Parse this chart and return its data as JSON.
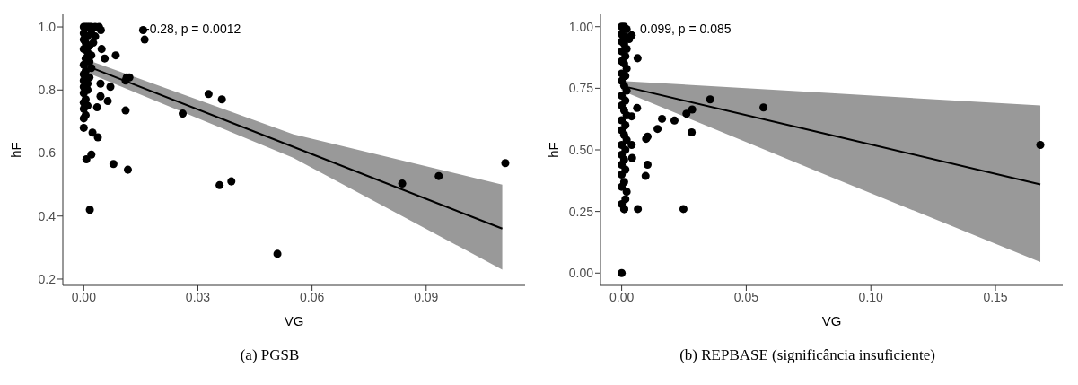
{
  "chart_data": [
    {
      "type": "scatter",
      "title": "(a) PGSB",
      "xlabel": "VG",
      "ylabel": "hF",
      "annotations": [
        "-0.28, p = 0.0012"
      ],
      "xlim": [
        -0.0055,
        0.116
      ],
      "ylim": [
        0.18,
        1.04
      ],
      "xticks": [
        {
          "value": 0,
          "label": "0.00"
        },
        {
          "value": 0.03,
          "label": "0.03"
        },
        {
          "value": 0.06,
          "label": "0.06"
        },
        {
          "value": 0.09,
          "label": "0.09"
        }
      ],
      "yticks": [
        0.2,
        0.4,
        0.6,
        0.8,
        {
          "value": 1,
          "label": "1.0"
        }
      ],
      "series": [
        {
          "marker": "circle",
          "color": "#000000",
          "x": [
            0,
            0.0005,
            0.001,
            0.0015,
            0.002,
            0.003,
            0.004,
            0.0045,
            0,
            0.001,
            0.002,
            0.003,
            0,
            0.0005,
            0.0015,
            0.0025,
            0,
            0.001,
            0.002,
            0.0005,
            0.0015,
            0,
            0.002,
            0.0005,
            0,
            0.0015,
            0,
            0.001,
            0,
            0.001,
            0,
            0.0005,
            0,
            0.001,
            0,
            0.0005,
            0,
            0.0156,
            0.016,
            0.0047,
            0.0055,
            0.0084,
            0.0113,
            0.011,
            0.012,
            0.0044,
            0.007,
            0.0044,
            0.0063,
            0.0035,
            0.011,
            0.026,
            0.0328,
            0.0363,
            0,
            0.0023,
            0.0037,
            0.0007,
            0.002,
            0.0078,
            0.0116,
            0.0016,
            0.0357,
            0.0388,
            0.0509,
            0.0837,
            0.0933,
            0.1108
          ],
          "values": [
            1.0,
            1.0,
            1.0,
            1.0,
            1.0,
            1.0,
            1.0,
            0.99,
            0.98,
            0.97,
            0.98,
            0.97,
            0.96,
            0.95,
            0.94,
            0.95,
            0.93,
            0.92,
            0.91,
            0.9,
            0.89,
            0.88,
            0.87,
            0.86,
            0.85,
            0.84,
            0.83,
            0.82,
            0.81,
            0.8,
            0.79,
            0.77,
            0.76,
            0.75,
            0.74,
            0.72,
            0.71,
            0.99,
            0.96,
            0.93,
            0.9,
            0.91,
            0.84,
            0.83,
            0.84,
            0.82,
            0.81,
            0.78,
            0.765,
            0.745,
            0.735,
            0.725,
            0.787,
            0.77,
            0.68,
            0.665,
            0.65,
            0.58,
            0.595,
            0.565,
            0.547,
            0.42,
            0.498,
            0.51,
            0.28,
            0.503,
            0.527,
            0.568
          ]
        },
        {
          "type": "line",
          "color": "#000000",
          "x": [
            0,
            0.055,
            0.11
          ],
          "values": [
            0.88,
            0.62,
            0.36
          ],
          "lower": [
            0.86,
            0.585,
            0.23
          ],
          "upper": [
            0.9,
            0.66,
            0.5
          ]
        }
      ]
    },
    {
      "type": "scatter",
      "title": "(b) REPBASE (significância insuficiente)",
      "xlabel": "VG",
      "ylabel": "hF",
      "annotations": [
        "0.099, p = 0.085"
      ],
      "xlim": [
        -0.0085,
        0.177
      ],
      "ylim": [
        -0.05,
        1.05
      ],
      "xticks": [
        {
          "value": 0,
          "label": "0.00"
        },
        {
          "value": 0.05,
          "label": "0.05"
        },
        {
          "value": 0.1,
          "label": "0.10"
        },
        {
          "value": 0.15,
          "label": "0.15"
        }
      ],
      "yticks": [
        {
          "value": 0,
          "label": "0.00"
        },
        {
          "value": 0.25,
          "label": "0.25"
        },
        {
          "value": 0.5,
          "label": "0.50"
        },
        {
          "value": 0.75,
          "label": "0.75"
        },
        {
          "value": 1,
          "label": "1.00"
        }
      ],
      "series": [
        {
          "marker": "circle",
          "color": "#000000",
          "x": [
            0,
            0.001,
            0.002,
            0,
            0.0015,
            0.003,
            0,
            0.001,
            0.002,
            0,
            0.0015,
            0,
            0.001,
            0.002,
            0,
            0.0015,
            0,
            0.001,
            0.002,
            0,
            0.0015,
            0,
            0.001,
            0.002,
            0,
            0.0015,
            0,
            0.001,
            0.002,
            0,
            0.0015,
            0,
            0.001,
            0,
            0.0015,
            0,
            0.001,
            0,
            0.0015,
            0,
            0.001,
            0.0064,
            0.0062,
            0.004,
            0.004,
            0.0042,
            0.0104,
            0.0098,
            0.0104,
            0.0096,
            0.0065,
            0.0248,
            0.0144,
            0.0162,
            0.0212,
            0.026,
            0.0283,
            0.0281,
            0.0355,
            0.0569,
            0.004,
            0.002,
            0.001,
            0,
            0.168
          ],
          "values": [
            1.0,
            1.0,
            0.99,
            0.97,
            0.96,
            0.95,
            0.94,
            0.93,
            0.91,
            0.9,
            0.88,
            0.86,
            0.85,
            0.83,
            0.81,
            0.8,
            0.78,
            0.76,
            0.74,
            0.72,
            0.7,
            0.68,
            0.66,
            0.64,
            0.62,
            0.6,
            0.58,
            0.56,
            0.54,
            0.52,
            0.5,
            0.48,
            0.46,
            0.44,
            0.42,
            0.4,
            0.37,
            0.35,
            0.3,
            0.28,
            0.26,
            0.872,
            0.67,
            0.636,
            0.52,
            0.467,
            0.554,
            0.545,
            0.44,
            0.394,
            0.26,
            0.26,
            0.585,
            0.626,
            0.619,
            0.647,
            0.664,
            0.571,
            0.705,
            0.672,
            0.965,
            0.33,
            0.26,
            0,
            0.52
          ]
        },
        {
          "type": "line",
          "color": "#000000",
          "x": [
            0,
            0.084,
            0.168
          ],
          "values": [
            0.76,
            0.56,
            0.36
          ],
          "lower": [
            0.74,
            0.39,
            0.045
          ],
          "upper": [
            0.78,
            0.73,
            0.68
          ]
        }
      ]
    }
  ]
}
